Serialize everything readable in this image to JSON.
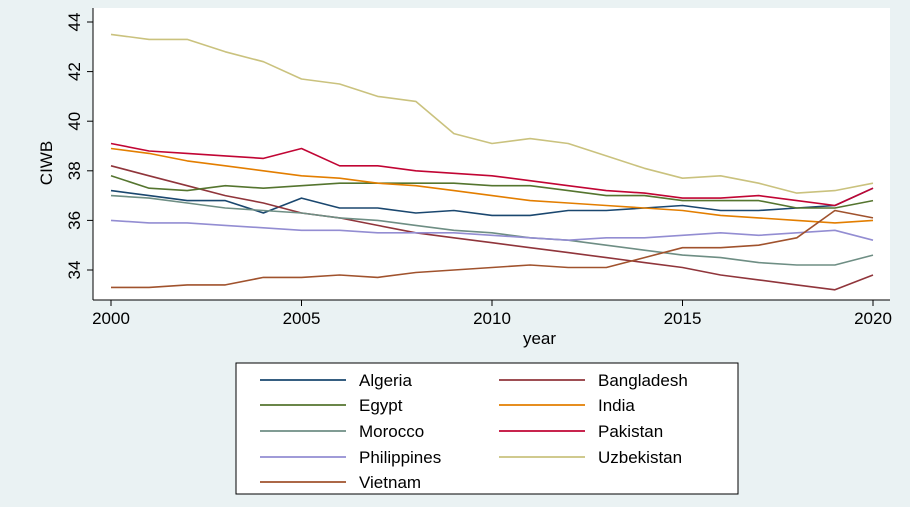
{
  "chart_data": {
    "type": "line",
    "title": "",
    "xlabel": "year",
    "ylabel": "CIWB",
    "xlim": [
      2000,
      2020
    ],
    "ylim": [
      33,
      44.4
    ],
    "x_ticks": [
      2000,
      2005,
      2010,
      2015,
      2020
    ],
    "y_ticks": [
      34,
      36,
      38,
      40,
      42,
      44
    ],
    "grid": false,
    "legend_position": "bottom",
    "x": [
      2000,
      2001,
      2002,
      2003,
      2004,
      2005,
      2006,
      2007,
      2008,
      2009,
      2010,
      2011,
      2012,
      2013,
      2014,
      2015,
      2016,
      2017,
      2018,
      2019,
      2020
    ],
    "series": [
      {
        "name": "Algeria",
        "color": "#1a476f",
        "values": [
          37.2,
          37.0,
          36.8,
          36.8,
          36.3,
          36.9,
          36.5,
          36.5,
          36.3,
          36.4,
          36.2,
          36.2,
          36.4,
          36.4,
          36.5,
          36.6,
          36.4,
          36.4,
          36.5,
          36.6,
          37.3
        ]
      },
      {
        "name": "Bangladesh",
        "color": "#90353b",
        "values": [
          38.2,
          37.8,
          37.4,
          37.0,
          36.7,
          36.3,
          36.1,
          35.8,
          35.5,
          35.3,
          35.1,
          34.9,
          34.7,
          34.5,
          34.3,
          34.1,
          33.8,
          33.6,
          33.4,
          33.2,
          33.8
        ]
      },
      {
        "name": "Egypt",
        "color": "#55752f",
        "values": [
          37.8,
          37.3,
          37.2,
          37.4,
          37.3,
          37.4,
          37.5,
          37.5,
          37.5,
          37.5,
          37.4,
          37.4,
          37.2,
          37.0,
          37.0,
          36.8,
          36.8,
          36.8,
          36.5,
          36.5,
          36.8
        ]
      },
      {
        "name": "India",
        "color": "#e37e00",
        "values": [
          38.9,
          38.7,
          38.4,
          38.2,
          38.0,
          37.8,
          37.7,
          37.5,
          37.4,
          37.2,
          37.0,
          36.8,
          36.7,
          36.6,
          36.5,
          36.4,
          36.2,
          36.1,
          36.0,
          35.9,
          36.0
        ]
      },
      {
        "name": "Morocco",
        "color": "#6e8e84",
        "values": [
          37.0,
          36.9,
          36.7,
          36.5,
          36.4,
          36.3,
          36.1,
          36.0,
          35.8,
          35.6,
          35.5,
          35.3,
          35.2,
          35.0,
          34.8,
          34.6,
          34.5,
          34.3,
          34.2,
          34.2,
          34.6
        ]
      },
      {
        "name": "Pakistan",
        "color": "#c10534",
        "values": [
          39.1,
          38.8,
          38.7,
          38.6,
          38.5,
          38.9,
          38.2,
          38.2,
          38.0,
          37.9,
          37.8,
          37.6,
          37.4,
          37.2,
          37.1,
          36.9,
          36.9,
          37.0,
          36.8,
          36.6,
          37.3
        ]
      },
      {
        "name": "Philippines",
        "color": "#938dd2",
        "values": [
          36.0,
          35.9,
          35.9,
          35.8,
          35.7,
          35.6,
          35.6,
          35.5,
          35.5,
          35.5,
          35.4,
          35.3,
          35.2,
          35.3,
          35.3,
          35.4,
          35.5,
          35.4,
          35.5,
          35.6,
          35.2
        ]
      },
      {
        "name": "Uzbekistan",
        "color": "#cac27e",
        "values": [
          43.5,
          43.3,
          43.3,
          42.8,
          42.4,
          41.7,
          41.5,
          41.0,
          40.8,
          39.5,
          39.1,
          39.3,
          39.1,
          38.6,
          38.1,
          37.7,
          37.8,
          37.5,
          37.1,
          37.2,
          37.5
        ]
      },
      {
        "name": "Vietnam",
        "color": "#a0522d",
        "values": [
          33.3,
          33.3,
          33.4,
          33.4,
          33.7,
          33.7,
          33.8,
          33.7,
          33.9,
          34.0,
          34.1,
          34.2,
          34.1,
          34.1,
          34.5,
          34.9,
          34.9,
          35.0,
          35.3,
          36.4,
          36.1
        ]
      }
    ]
  }
}
